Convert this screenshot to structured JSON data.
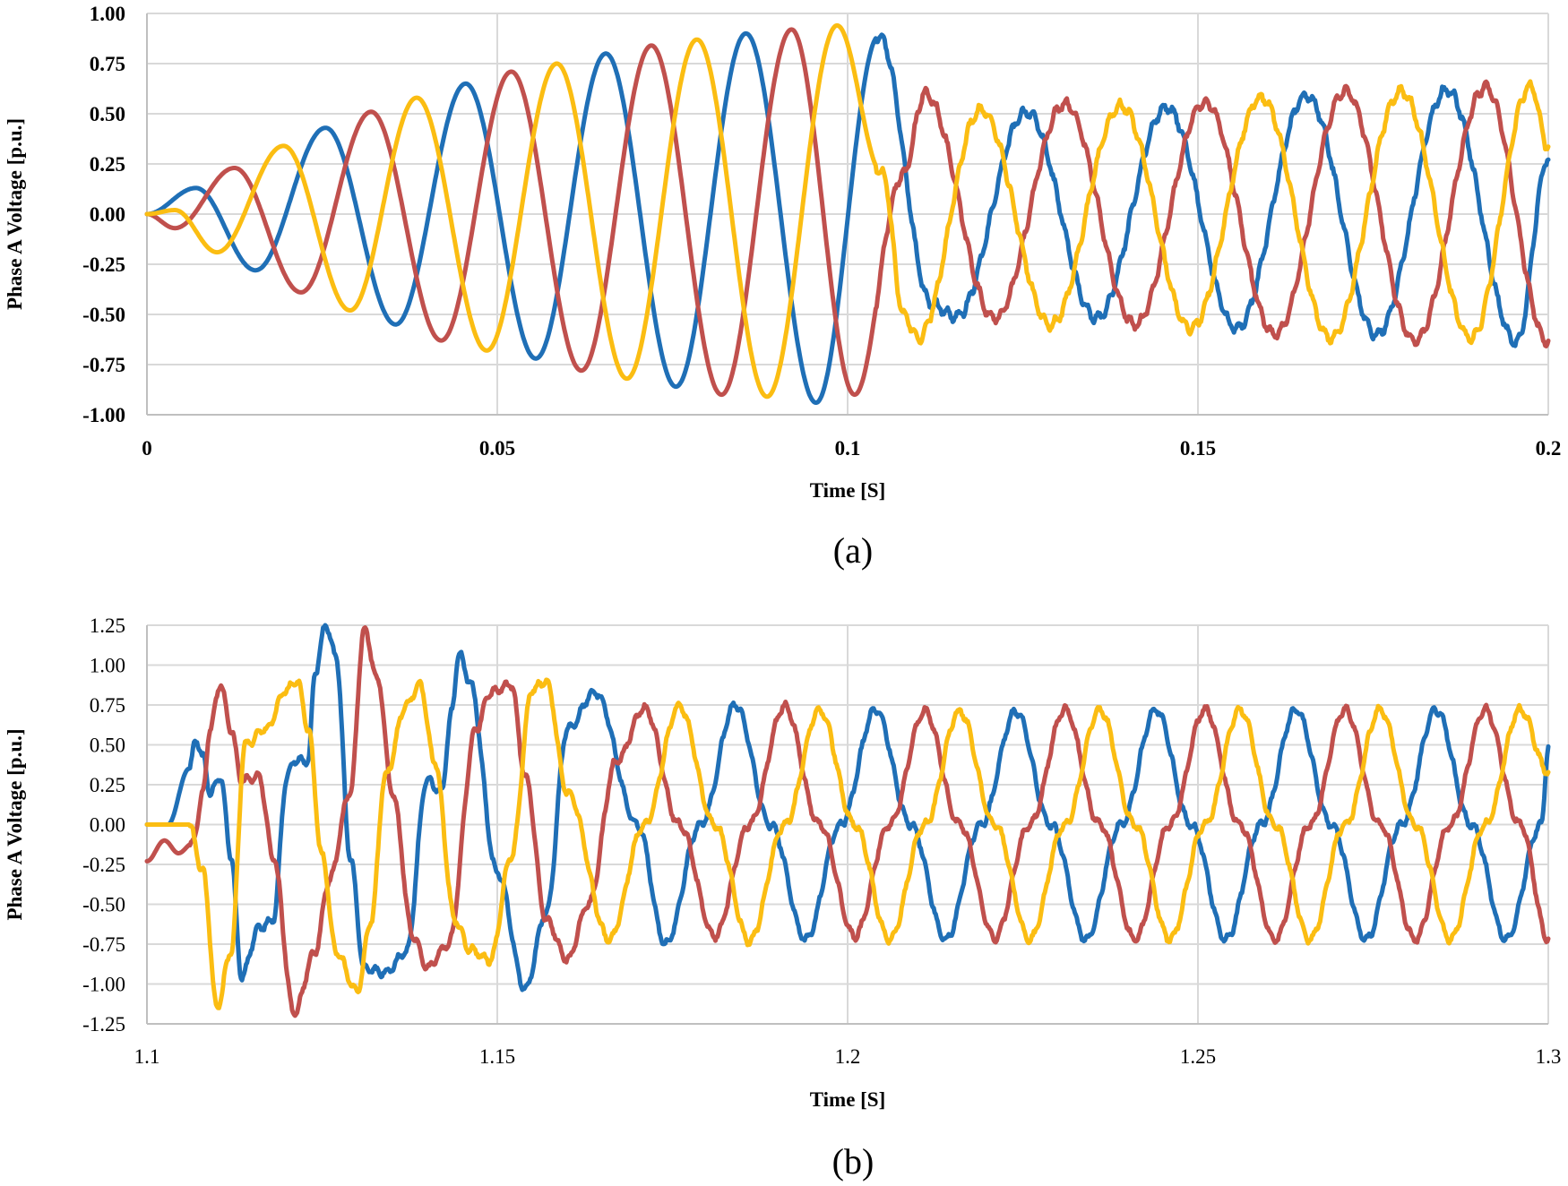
{
  "chart_data": [
    {
      "type": "line",
      "caption": "(a)",
      "xlabel": "Time [S]",
      "ylabel": "Phase A Voltage [p.u.]",
      "xlim": [
        0,
        0.2
      ],
      "ylim": [
        -1.0,
        1.0
      ],
      "x_ticks": [
        0,
        0.05,
        0.1,
        0.15,
        0.2
      ],
      "x_tick_labels": [
        "0",
        "0.05",
        "0.1",
        "0.15",
        "0.2"
      ],
      "y_ticks": [
        -1.0,
        -0.75,
        -0.5,
        -0.25,
        0,
        0.25,
        0.5,
        0.75,
        1.0
      ],
      "y_tick_labels": [
        "-1.00",
        "-0.75",
        "-0.50",
        "-0.25",
        "0.00",
        "0.25",
        "0.50",
        "0.75",
        "1.00"
      ],
      "grid": true,
      "frequency_hz": 50,
      "series": [
        {
          "color": "#1f6fb6",
          "points": [
            [
              0,
              0
            ],
            [
              0.007,
              0.13
            ],
            [
              0.0155,
              -0.28
            ],
            [
              0.0255,
              0.43
            ],
            [
              0.0355,
              -0.55
            ],
            [
              0.0455,
              0.65
            ],
            [
              0.0555,
              -0.72
            ],
            [
              0.0655,
              0.8
            ],
            [
              0.0755,
              -0.86
            ],
            [
              0.0855,
              0.9
            ],
            [
              0.0955,
              -0.94
            ],
            [
              0.1045,
              0.89
            ],
            [
              0.112,
              -0.45
            ],
            [
              0.1155,
              -0.51
            ],
            [
              0.1255,
              0.51
            ],
            [
              0.1355,
              -0.52
            ],
            [
              0.1455,
              0.53
            ],
            [
              0.1555,
              -0.57
            ],
            [
              0.1655,
              0.59
            ],
            [
              0.1755,
              -0.6
            ],
            [
              0.1855,
              0.62
            ],
            [
              0.1955,
              -0.64
            ],
            [
              0.2,
              0.28
            ]
          ]
        },
        {
          "color": "#c0504d",
          "points": [
            [
              0,
              0
            ],
            [
              0.004,
              -0.07
            ],
            [
              0.0125,
              0.23
            ],
            [
              0.022,
              -0.39
            ],
            [
              0.032,
              0.51
            ],
            [
              0.042,
              -0.63
            ],
            [
              0.052,
              0.71
            ],
            [
              0.062,
              -0.78
            ],
            [
              0.072,
              0.84
            ],
            [
              0.082,
              -0.9
            ],
            [
              0.092,
              0.92
            ],
            [
              0.101,
              -0.9
            ],
            [
              0.108,
              0.2
            ],
            [
              0.111,
              0.6
            ],
            [
              0.121,
              -0.52
            ],
            [
              0.131,
              0.55
            ],
            [
              0.141,
              -0.55
            ],
            [
              0.151,
              0.56
            ],
            [
              0.161,
              -0.6
            ],
            [
              0.171,
              0.61
            ],
            [
              0.181,
              -0.63
            ],
            [
              0.191,
              0.63
            ],
            [
              0.2,
              -0.64
            ]
          ]
        },
        {
          "color": "#fbbd12",
          "points": [
            [
              0,
              0
            ],
            [
              0.004,
              0.02
            ],
            [
              0.01,
              -0.19
            ],
            [
              0.0195,
              0.34
            ],
            [
              0.029,
              -0.48
            ],
            [
              0.0385,
              0.58
            ],
            [
              0.0485,
              -0.68
            ],
            [
              0.0585,
              0.75
            ],
            [
              0.0685,
              -0.82
            ],
            [
              0.0785,
              0.87
            ],
            [
              0.0885,
              -0.91
            ],
            [
              0.0985,
              0.94
            ],
            [
              0.105,
              0.2
            ],
            [
              0.108,
              -0.5
            ],
            [
              0.11,
              -0.62
            ],
            [
              0.119,
              0.52
            ],
            [
              0.129,
              -0.55
            ],
            [
              0.139,
              0.54
            ],
            [
              0.149,
              -0.57
            ],
            [
              0.159,
              0.58
            ],
            [
              0.169,
              -0.62
            ],
            [
              0.179,
              0.61
            ],
            [
              0.189,
              -0.62
            ],
            [
              0.1975,
              0.64
            ],
            [
              0.2,
              0.33
            ]
          ]
        }
      ]
    },
    {
      "type": "line",
      "caption": "(b)",
      "xlabel": "Time [S]",
      "ylabel": "Phase A Voltage [p.u.]",
      "xlim": [
        1.1,
        1.3
      ],
      "ylim": [
        -1.25,
        1.25
      ],
      "x_ticks": [
        1.1,
        1.15,
        1.2,
        1.25,
        1.3
      ],
      "x_tick_labels": [
        "1.1",
        "1.15",
        "1.2",
        "1.25",
        "1.3"
      ],
      "y_ticks": [
        -1.25,
        -1.0,
        -0.75,
        -0.5,
        -0.25,
        0,
        0.25,
        0.5,
        0.75,
        1.0,
        1.25
      ],
      "y_tick_labels": [
        "-1.25",
        "-1.00",
        "-0.75",
        "-0.50",
        "-0.25",
        "0.00",
        "0.25",
        "0.50",
        "0.75",
        "1.00",
        "1.25"
      ],
      "grid": true,
      "frequency_hz": 50,
      "series": [
        {
          "color": "#1f6fb6",
          "points": [
            [
              1.1,
              0.0
            ],
            [
              1.103,
              0.0
            ],
            [
              1.106,
              0.35
            ],
            [
              1.107,
              0.53
            ],
            [
              1.108,
              0.42
            ],
            [
              1.109,
              0.2
            ],
            [
              1.1105,
              0.3
            ],
            [
              1.112,
              -0.2
            ],
            [
              1.1135,
              -0.95
            ],
            [
              1.116,
              -0.65
            ],
            [
              1.118,
              -0.6
            ],
            [
              1.12,
              0.3
            ],
            [
              1.121,
              0.4
            ],
            [
              1.123,
              0.4
            ],
            [
              1.124,
              0.95
            ],
            [
              1.1255,
              1.25
            ],
            [
              1.127,
              1.05
            ],
            [
              1.129,
              -0.2
            ],
            [
              1.131,
              -0.9
            ],
            [
              1.134,
              -0.93
            ],
            [
              1.137,
              -0.8
            ],
            [
              1.14,
              0.28
            ],
            [
              1.142,
              0.2
            ],
            [
              1.1435,
              0.7
            ],
            [
              1.1445,
              1.08
            ],
            [
              1.146,
              0.9
            ],
            [
              1.15,
              -0.3
            ],
            [
              1.154,
              -1.03
            ],
            [
              1.157,
              -0.55
            ],
            [
              1.16,
              0.6
            ],
            [
              1.164,
              0.83
            ],
            [
              1.17,
              0.0
            ],
            [
              1.174,
              -0.75
            ],
            [
              1.179,
              0.0
            ],
            [
              1.184,
              0.75
            ],
            [
              1.189,
              0.0
            ],
            [
              1.194,
              -0.72
            ],
            [
              1.199,
              0.0
            ],
            [
              1.204,
              0.72
            ],
            [
              1.209,
              0.0
            ],
            [
              1.214,
              -0.72
            ],
            [
              1.219,
              0.0
            ],
            [
              1.224,
              0.71
            ],
            [
              1.229,
              0.0
            ],
            [
              1.234,
              -0.72
            ],
            [
              1.239,
              0.0
            ],
            [
              1.244,
              0.72
            ],
            [
              1.249,
              0.0
            ],
            [
              1.254,
              -0.72
            ],
            [
              1.259,
              0.0
            ],
            [
              1.264,
              0.72
            ],
            [
              1.269,
              0.0
            ],
            [
              1.274,
              -0.72
            ],
            [
              1.279,
              0.0
            ],
            [
              1.284,
              0.72
            ],
            [
              1.289,
              0.0
            ],
            [
              1.294,
              -0.72
            ],
            [
              1.299,
              0.0
            ],
            [
              1.3,
              0.48
            ]
          ]
        },
        {
          "color": "#c0504d",
          "points": [
            [
              1.1,
              -0.23
            ],
            [
              1.1025,
              -0.1
            ],
            [
              1.1045,
              -0.18
            ],
            [
              1.1065,
              -0.12
            ],
            [
              1.108,
              0.2
            ],
            [
              1.109,
              0.6
            ],
            [
              1.1105,
              0.88
            ],
            [
              1.112,
              0.6
            ],
            [
              1.1135,
              0.28
            ],
            [
              1.116,
              0.3
            ],
            [
              1.118,
              -0.2
            ],
            [
              1.121,
              -1.18
            ],
            [
              1.124,
              -0.8
            ],
            [
              1.126,
              -0.35
            ],
            [
              1.129,
              0.2
            ],
            [
              1.131,
              1.22
            ],
            [
              1.133,
              0.9
            ],
            [
              1.135,
              0.2
            ],
            [
              1.138,
              -0.7
            ],
            [
              1.14,
              -0.9
            ],
            [
              1.143,
              -0.75
            ],
            [
              1.147,
              0.6
            ],
            [
              1.149,
              0.83
            ],
            [
              1.152,
              0.88
            ],
            [
              1.154,
              0.3
            ],
            [
              1.157,
              -0.6
            ],
            [
              1.16,
              -0.85
            ],
            [
              1.163,
              -0.5
            ],
            [
              1.167,
              0.4
            ],
            [
              1.171,
              0.73
            ],
            [
              1.176,
              0.0
            ],
            [
              1.181,
              -0.7
            ],
            [
              1.186,
              0.0
            ],
            [
              1.191,
              0.74
            ],
            [
              1.196,
              0.0
            ],
            [
              1.201,
              -0.7
            ],
            [
              1.206,
              0.0
            ],
            [
              1.211,
              0.71
            ],
            [
              1.216,
              0.0
            ],
            [
              1.221,
              -0.71
            ],
            [
              1.226,
              0.0
            ],
            [
              1.231,
              0.72
            ],
            [
              1.236,
              0.0
            ],
            [
              1.241,
              -0.72
            ],
            [
              1.246,
              0.0
            ],
            [
              1.251,
              0.72
            ],
            [
              1.256,
              0.0
            ],
            [
              1.261,
              -0.72
            ],
            [
              1.266,
              0.0
            ],
            [
              1.271,
              0.72
            ],
            [
              1.276,
              0.0
            ],
            [
              1.281,
              -0.72
            ],
            [
              1.286,
              0.0
            ],
            [
              1.291,
              0.72
            ],
            [
              1.296,
              0.0
            ],
            [
              1.3,
              -0.72
            ]
          ]
        },
        {
          "color": "#fbbd12",
          "points": [
            [
              1.1,
              0.0
            ],
            [
              1.106,
              0.0
            ],
            [
              1.108,
              -0.3
            ],
            [
              1.11,
              -1.15
            ],
            [
              1.112,
              -0.8
            ],
            [
              1.114,
              0.5
            ],
            [
              1.117,
              0.6
            ],
            [
              1.12,
              0.85
            ],
            [
              1.1215,
              0.9
            ],
            [
              1.123,
              0.6
            ],
            [
              1.125,
              -0.2
            ],
            [
              1.127,
              -0.8
            ],
            [
              1.13,
              -1.05
            ],
            [
              1.132,
              -0.6
            ],
            [
              1.134,
              0.3
            ],
            [
              1.137,
              0.75
            ],
            [
              1.139,
              0.88
            ],
            [
              1.141,
              0.4
            ],
            [
              1.144,
              -0.6
            ],
            [
              1.146,
              -0.78
            ],
            [
              1.149,
              -0.85
            ],
            [
              1.152,
              -0.2
            ],
            [
              1.155,
              0.85
            ],
            [
              1.157,
              0.9
            ],
            [
              1.16,
              0.2
            ],
            [
              1.166,
              -0.72
            ],
            [
              1.171,
              0.0
            ],
            [
              1.176,
              0.74
            ],
            [
              1.181,
              0.0
            ],
            [
              1.186,
              -0.73
            ],
            [
              1.191,
              0.0
            ],
            [
              1.196,
              0.72
            ],
            [
              1.201,
              0.0
            ],
            [
              1.206,
              -0.72
            ],
            [
              1.211,
              0.0
            ],
            [
              1.216,
              0.71
            ],
            [
              1.221,
              0.0
            ],
            [
              1.226,
              -0.72
            ],
            [
              1.231,
              0.0
            ],
            [
              1.236,
              0.72
            ],
            [
              1.241,
              0.0
            ],
            [
              1.246,
              -0.72
            ],
            [
              1.251,
              0.0
            ],
            [
              1.256,
              0.72
            ],
            [
              1.261,
              0.0
            ],
            [
              1.266,
              -0.72
            ],
            [
              1.271,
              0.0
            ],
            [
              1.276,
              0.72
            ],
            [
              1.281,
              0.0
            ],
            [
              1.286,
              -0.72
            ],
            [
              1.291,
              0.0
            ],
            [
              1.296,
              0.72
            ],
            [
              1.3,
              0.33
            ]
          ]
        }
      ]
    }
  ]
}
